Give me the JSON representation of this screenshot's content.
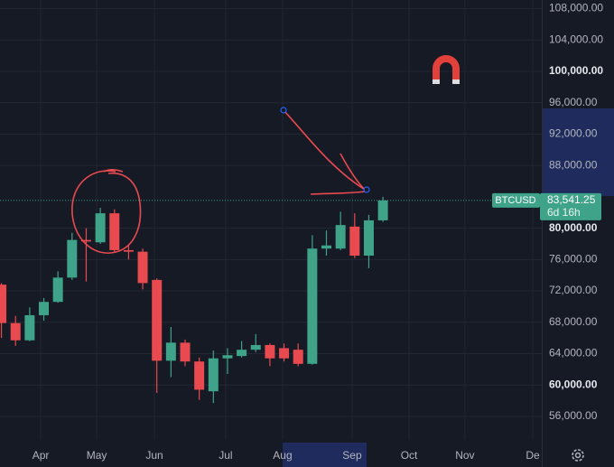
{
  "chart_data": {
    "type": "candlestick",
    "x": [
      0,
      1,
      2,
      3,
      4,
      5,
      6,
      7,
      8,
      9,
      10,
      11,
      12,
      13,
      14,
      15,
      16,
      17,
      18,
      19,
      20,
      21,
      22,
      23,
      24,
      25,
      26,
      27
    ],
    "series": {
      "open": [
        72800,
        67900,
        65700,
        68900,
        70600,
        73700,
        78500,
        78200,
        81900,
        77200,
        77000,
        73400,
        63100,
        65400,
        63000,
        59200,
        63400,
        63700,
        64500,
        65100,
        64700,
        64500,
        62700,
        77400,
        77400,
        80200,
        76500,
        81000
      ],
      "high": [
        73000,
        68800,
        69900,
        71100,
        74500,
        79400,
        80000,
        82600,
        82400,
        77800,
        77400,
        73600,
        67400,
        65800,
        63500,
        64400,
        64700,
        65600,
        66500,
        65300,
        65300,
        65300,
        79100,
        79700,
        82100,
        81900,
        81700,
        84000
      ],
      "low": [
        66000,
        65000,
        65600,
        68200,
        70500,
        73400,
        73200,
        78000,
        77000,
        76000,
        72200,
        59000,
        61000,
        62400,
        58100,
        57700,
        61400,
        63500,
        64200,
        62400,
        63000,
        62400,
        62600,
        76500,
        77200,
        76200,
        74900,
        80800
      ],
      "close": [
        67900,
        65700,
        68900,
        70600,
        73700,
        78500,
        78300,
        81900,
        77200,
        77000,
        73000,
        63100,
        65400,
        63000,
        59400,
        63400,
        63800,
        64500,
        65100,
        63400,
        63400,
        62700,
        77400,
        77800,
        80400,
        76500,
        81000,
        83541.25
      ]
    },
    "up_color": "#3fa389",
    "down_color": "#e84a4f",
    "xlim": [
      -0.1,
      38.24
    ],
    "xticks": [
      {
        "value": 2.78,
        "label": "Apr"
      },
      {
        "value": 6.74,
        "label": "May"
      },
      {
        "value": 10.83,
        "label": "Jun"
      },
      {
        "value": 15.87,
        "label": "Jul"
      },
      {
        "value": 19.9,
        "label": "Aug"
      },
      {
        "value": 24.82,
        "label": "Sep"
      },
      {
        "value": 28.85,
        "label": "Oct"
      },
      {
        "value": 32.8,
        "label": "Nov"
      },
      {
        "value": 37.6,
        "label": "De"
      }
    ],
    "ylim": [
      53000,
      109100
    ],
    "yticks": [
      {
        "value": 56000,
        "label": "56,000.00"
      },
      {
        "value": 60000,
        "label": "60,000.00"
      },
      {
        "value": 64000,
        "label": "64,000.00"
      },
      {
        "value": 68000,
        "label": "68,000.00"
      },
      {
        "value": 72000,
        "label": "72,000.00"
      },
      {
        "value": 76000,
        "label": "76,000.00"
      },
      {
        "value": 80000,
        "label": "80,000.00"
      },
      {
        "value": 88000,
        "label": "88,000.00"
      },
      {
        "value": 92000,
        "label": "92,000.00"
      },
      {
        "value": 96000,
        "label": "96,000.00"
      },
      {
        "value": 100000,
        "label": "100,000.00"
      },
      {
        "value": 104000,
        "label": "104,000.00"
      },
      {
        "value": 108000,
        "label": "108,000.00"
      }
    ],
    "grid": true,
    "symbol": "BTCUSD",
    "last_price": {
      "value": 83541.25,
      "label": "83,541.25"
    },
    "countdown": "6d 16h"
  }
}
